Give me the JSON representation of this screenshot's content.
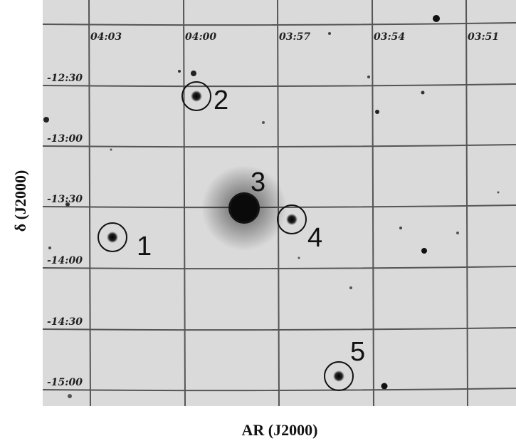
{
  "field": {
    "ra_labels": [
      "04:03",
      "04:00",
      "03:57",
      "03:54",
      "03:51"
    ],
    "dec_labels": [
      "-12:30",
      "-13:00",
      "-13:30",
      "-14:00",
      "-14:30",
      "-15:00"
    ],
    "sources": [
      {
        "label": "1"
      },
      {
        "label": "2"
      },
      {
        "label": "3"
      },
      {
        "label": "4"
      },
      {
        "label": "5"
      }
    ]
  },
  "x_axis_label": "AR (J2000)",
  "y_axis_label": "δ (J2000)"
}
